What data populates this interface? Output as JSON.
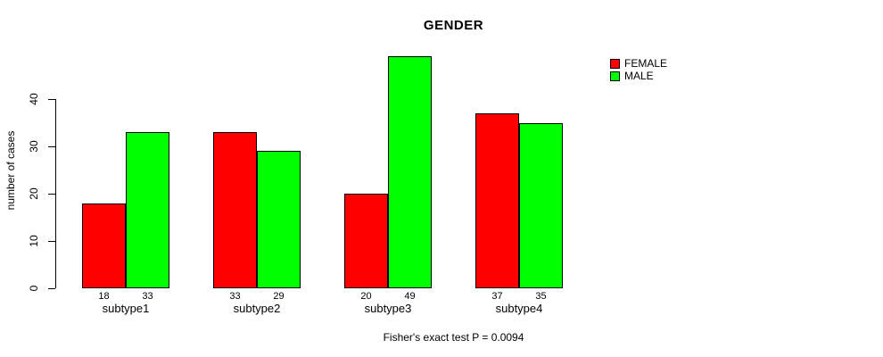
{
  "title": "GENDER",
  "caption": "Fisher's exact test P = 0.0094",
  "y_axis": {
    "label": "number of cases",
    "ticks": [
      0,
      10,
      20,
      30,
      40
    ]
  },
  "legend": {
    "items": [
      {
        "label": "FEMALE",
        "color": "#ff0000"
      },
      {
        "label": "MALE",
        "color": "#00ff00"
      }
    ]
  },
  "chart_data": {
    "type": "bar",
    "grouped": true,
    "title": "GENDER",
    "xlabel": "",
    "ylabel": "number of cases",
    "categories": [
      "subtype1",
      "subtype2",
      "subtype3",
      "subtype4"
    ],
    "series": [
      {
        "name": "FEMALE",
        "color": "#ff0000",
        "values": [
          18,
          33,
          20,
          37
        ]
      },
      {
        "name": "MALE",
        "color": "#00ff00",
        "values": [
          33,
          29,
          49,
          35
        ]
      }
    ],
    "bar_value_labels": [
      [
        18,
        33
      ],
      [
        33,
        29
      ],
      [
        20,
        49
      ],
      [
        37,
        35
      ]
    ],
    "ylim": [
      0,
      40
    ],
    "yticks": [
      0,
      10,
      20,
      30,
      40
    ],
    "grid": false,
    "legend_position": "top-right",
    "bar_border_color": "#000000",
    "annotation": "Fisher's exact test P = 0.0094"
  }
}
